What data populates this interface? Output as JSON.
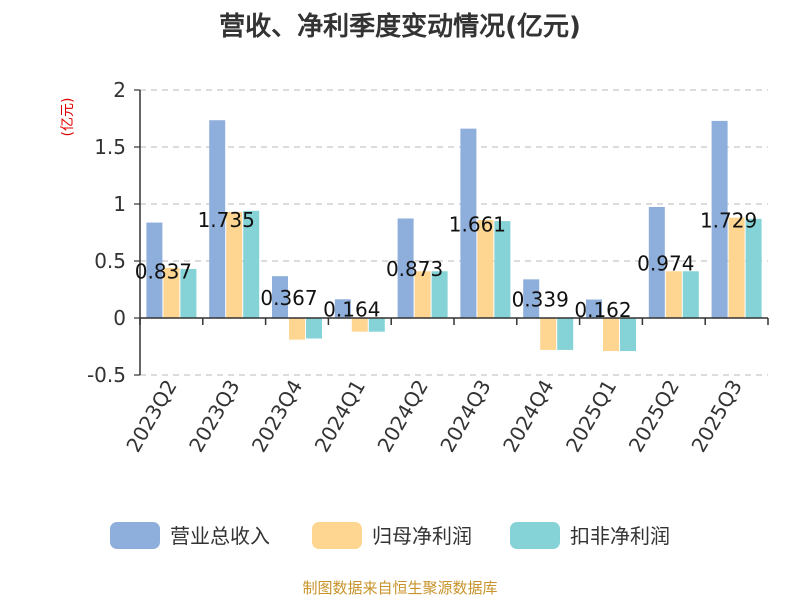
{
  "chart_data": {
    "type": "bar",
    "title": "营收、净利季度变动情况(亿元)",
    "ylabel": "(亿元)",
    "ylim": [
      -0.5,
      2
    ],
    "yticks": [
      "2",
      "1.5",
      "1",
      "0.5",
      "0",
      "-0.5"
    ],
    "yticks_values": [
      2,
      1.5,
      1,
      0.5,
      0,
      -0.5
    ],
    "grid": true,
    "legend_position": "bottom",
    "categories": [
      "2023Q2",
      "2023Q3",
      "2023Q4",
      "2024Q1",
      "2024Q2",
      "2024Q3",
      "2024Q4",
      "2025Q1",
      "2025Q2",
      "2025Q3"
    ],
    "series": [
      {
        "name": "营业总收入",
        "color": "#8eaedb",
        "values": [
          0.837,
          1.735,
          0.367,
          0.164,
          0.873,
          1.661,
          0.339,
          0.162,
          0.974,
          1.729
        ]
      },
      {
        "name": "归母净利润",
        "color": "#ffd592",
        "values": [
          0.44,
          0.93,
          -0.19,
          -0.12,
          0.41,
          0.86,
          -0.28,
          -0.29,
          0.41,
          0.88
        ]
      },
      {
        "name": "扣非净利润",
        "color": "#85d3d6",
        "values": [
          0.43,
          0.94,
          -0.18,
          -0.12,
          0.41,
          0.85,
          -0.28,
          -0.29,
          0.41,
          0.87
        ]
      }
    ],
    "data_labels": [
      "0.837",
      "1.735",
      "0.367",
      "0.164",
      "0.873",
      "1.661",
      "0.339",
      "0.162",
      "0.974",
      "1.729"
    ]
  },
  "source": "制图数据来自恒生聚源数据库"
}
